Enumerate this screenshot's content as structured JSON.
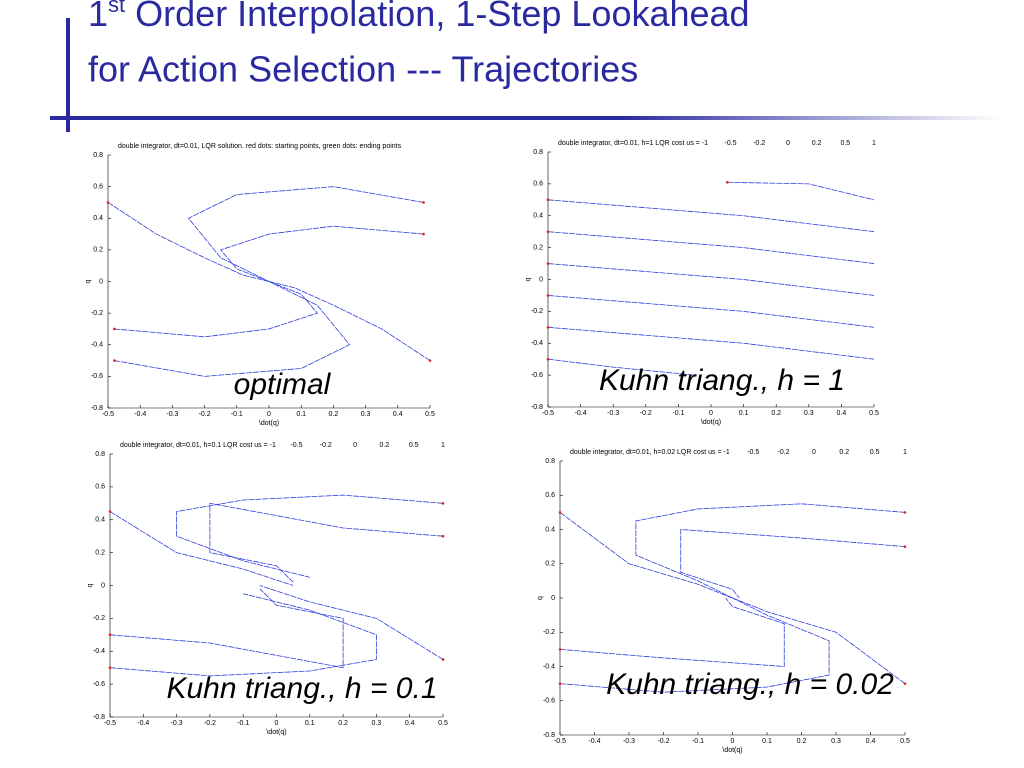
{
  "slide": {
    "title_number": "1",
    "title_superscript": "st",
    "title_rest": " Order Interpolation, 1-Step Lookahead",
    "title_line2": "for Action Selection --- Trajectories"
  },
  "chart_data": [
    {
      "type": "line",
      "title": "double integrator, dt=0.01, LQR solution. red dots: starting points, green dots: ending points",
      "caption": "optimal",
      "xlabel": "\\dot(q)",
      "ylabel": "q",
      "xlim": [
        -0.5,
        0.5
      ],
      "ylim": [
        -0.8,
        0.8
      ],
      "xticks": [
        -0.5,
        -0.4,
        -0.3,
        -0.2,
        -0.1,
        0,
        0.1,
        0.2,
        0.3,
        0.4,
        0.5
      ],
      "yticks": [
        -0.8,
        -0.6,
        -0.4,
        -0.2,
        0,
        0.2,
        0.4,
        0.6,
        0.8
      ],
      "color": "#2f3fe0",
      "start_color": "#e02020",
      "series": [
        {
          "x": [
            -0.5,
            -0.35,
            -0.2,
            -0.08,
            0
          ],
          "values": [
            0.5,
            0.3,
            0.15,
            0.04,
            0
          ]
        },
        {
          "x": [
            0.48,
            0.2,
            -0.1,
            -0.25,
            -0.15,
            0
          ],
          "values": [
            0.5,
            0.6,
            0.55,
            0.4,
            0.15,
            0
          ]
        },
        {
          "x": [
            0.48,
            0.2,
            0,
            -0.15,
            -0.1,
            0
          ],
          "values": [
            0.3,
            0.35,
            0.3,
            0.2,
            0.08,
            0
          ]
        },
        {
          "x": [
            -0.48,
            -0.2,
            0,
            0.15,
            0.1,
            0
          ],
          "values": [
            -0.3,
            -0.35,
            -0.3,
            -0.2,
            -0.08,
            0
          ]
        },
        {
          "x": [
            -0.48,
            -0.2,
            0.1,
            0.25,
            0.15,
            0
          ],
          "values": [
            -0.5,
            -0.6,
            -0.55,
            -0.4,
            -0.15,
            0
          ]
        },
        {
          "x": [
            0.5,
            0.35,
            0.2,
            0.08,
            0
          ],
          "values": [
            -0.5,
            -0.3,
            -0.15,
            -0.04,
            0
          ]
        }
      ]
    },
    {
      "type": "line",
      "title": "double integrator, dt=0.01, h=1 LQR cost  us = -1",
      "us_levels": [
        "-0.5",
        "-0.2",
        "0",
        "0.2",
        "0.5",
        "1"
      ],
      "caption": "Kuhn triang., h = 1",
      "xlabel": "\\dot(q)",
      "ylabel": "q",
      "xlim": [
        -0.5,
        0.5
      ],
      "ylim": [
        -0.8,
        0.8
      ],
      "xticks": [
        -0.5,
        -0.4,
        -0.3,
        -0.2,
        -0.1,
        0,
        0.1,
        0.2,
        0.3,
        0.4,
        0.5
      ],
      "yticks": [
        -0.8,
        -0.6,
        -0.4,
        -0.2,
        0,
        0.2,
        0.4,
        0.6,
        0.8
      ],
      "color": "#2f3fe0",
      "start_color": "#e02020",
      "series": [
        {
          "x": [
            0.05,
            0.3,
            0.5
          ],
          "values": [
            0.61,
            0.6,
            0.5
          ]
        },
        {
          "x": [
            -0.5,
            -0.2,
            0.1,
            0.5
          ],
          "values": [
            0.5,
            0.45,
            0.4,
            0.3
          ]
        },
        {
          "x": [
            -0.5,
            -0.2,
            0.1,
            0.5
          ],
          "values": [
            0.3,
            0.25,
            0.2,
            0.1
          ]
        },
        {
          "x": [
            -0.5,
            -0.2,
            0.1,
            0.5
          ],
          "values": [
            0.1,
            0.05,
            0,
            -0.1
          ]
        },
        {
          "x": [
            -0.5,
            -0.2,
            0.1,
            0.5
          ],
          "values": [
            -0.1,
            -0.15,
            -0.2,
            -0.3
          ]
        },
        {
          "x": [
            -0.5,
            -0.2,
            0.1,
            0.5
          ],
          "values": [
            -0.3,
            -0.35,
            -0.4,
            -0.5
          ]
        },
        {
          "x": [
            -0.5,
            -0.3,
            -0.05
          ],
          "values": [
            -0.5,
            -0.55,
            -0.6
          ]
        }
      ]
    },
    {
      "type": "line",
      "title": "double integrator, dt=0.01, h=0.1 LQR cost  us = -1",
      "us_levels": [
        "-0.5",
        "-0.2",
        "0",
        "0.2",
        "0.5",
        "1"
      ],
      "caption": "Kuhn triang., h = 0.1",
      "xlabel": "\\dot(q)",
      "ylabel": "q",
      "xlim": [
        -0.5,
        0.5
      ],
      "ylim": [
        -0.8,
        0.8
      ],
      "xticks": [
        -0.5,
        -0.4,
        -0.3,
        -0.2,
        -0.1,
        0,
        0.1,
        0.2,
        0.3,
        0.4,
        0.5
      ],
      "yticks": [
        -0.8,
        -0.6,
        -0.4,
        -0.2,
        0,
        0.2,
        0.4,
        0.6,
        0.8
      ],
      "color": "#2f3fe0",
      "start_color": "#e02020",
      "series": [
        {
          "x": [
            0.5,
            0.2,
            -0.1,
            -0.3,
            -0.3,
            -0.1,
            0.1
          ],
          "values": [
            0.5,
            0.55,
            0.52,
            0.45,
            0.3,
            0.15,
            0.05
          ]
        },
        {
          "x": [
            0.5,
            0.2,
            -0.2,
            -0.2,
            0,
            0.05
          ],
          "values": [
            0.3,
            0.35,
            0.5,
            0.2,
            0.12,
            0.02
          ]
        },
        {
          "x": [
            -0.5,
            -0.3,
            -0.1,
            0.05
          ],
          "values": [
            0.45,
            0.2,
            0.1,
            0
          ]
        },
        {
          "x": [
            -0.5,
            -0.2,
            0.2,
            0.2,
            0,
            -0.05
          ],
          "values": [
            -0.3,
            -0.35,
            -0.5,
            -0.2,
            -0.12,
            -0.02
          ]
        },
        {
          "x": [
            -0.5,
            -0.2,
            0.1,
            0.3,
            0.3,
            0.1,
            -0.1
          ],
          "values": [
            -0.5,
            -0.55,
            -0.52,
            -0.45,
            -0.3,
            -0.15,
            -0.05
          ]
        },
        {
          "x": [
            0.5,
            0.3,
            0.1,
            -0.05
          ],
          "values": [
            -0.45,
            -0.2,
            -0.1,
            0
          ]
        }
      ]
    },
    {
      "type": "line",
      "title": "double integrator, dt=0.01, h=0.02 LQR cost  us = -1",
      "us_levels": [
        "-0.5",
        "-0.2",
        "0",
        "0.2",
        "0.5",
        "1"
      ],
      "caption": "Kuhn triang., h = 0.02",
      "xlabel": "\\dot(q)",
      "ylabel": "q",
      "xlim": [
        -0.5,
        0.5
      ],
      "ylim": [
        -0.8,
        0.8
      ],
      "xticks": [
        -0.5,
        -0.4,
        -0.3,
        -0.2,
        -0.1,
        0,
        0.1,
        0.2,
        0.3,
        0.4,
        0.5
      ],
      "yticks": [
        -0.8,
        -0.6,
        -0.4,
        -0.2,
        0,
        0.2,
        0.4,
        0.6,
        0.8
      ],
      "color": "#2f3fe0",
      "start_color": "#e02020",
      "series": [
        {
          "x": [
            0.5,
            0.2,
            -0.1,
            -0.28,
            -0.28,
            -0.1,
            0
          ],
          "values": [
            0.5,
            0.55,
            0.52,
            0.45,
            0.25,
            0.1,
            0
          ]
        },
        {
          "x": [
            0.5,
            0.2,
            -0.15,
            -0.15,
            0,
            0.02
          ],
          "values": [
            0.3,
            0.35,
            0.4,
            0.15,
            0.05,
            0
          ]
        },
        {
          "x": [
            -0.5,
            -0.3,
            -0.1,
            0
          ],
          "values": [
            0.5,
            0.2,
            0.08,
            0
          ]
        },
        {
          "x": [
            -0.5,
            -0.2,
            0.15,
            0.15,
            0,
            -0.02
          ],
          "values": [
            -0.3,
            -0.35,
            -0.4,
            -0.15,
            -0.05,
            0
          ]
        },
        {
          "x": [
            -0.5,
            -0.2,
            0.1,
            0.28,
            0.28,
            0.1,
            0
          ],
          "values": [
            -0.5,
            -0.55,
            -0.52,
            -0.45,
            -0.25,
            -0.1,
            0
          ]
        },
        {
          "x": [
            0.5,
            0.3,
            0.1,
            0
          ],
          "values": [
            -0.5,
            -0.2,
            -0.08,
            0
          ]
        }
      ]
    }
  ]
}
